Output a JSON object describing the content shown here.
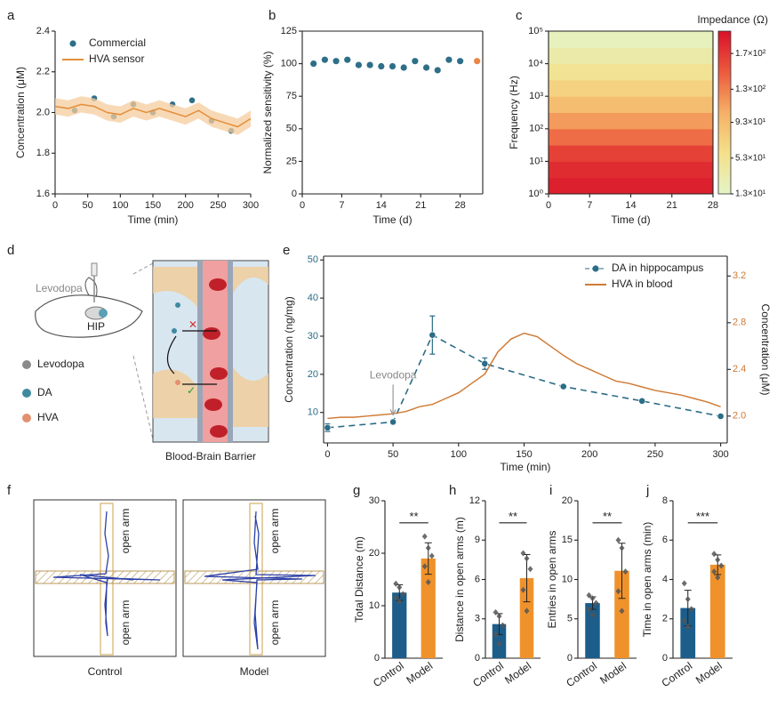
{
  "chart_data": [
    {
      "type": "line",
      "panel": "a",
      "xlabel": "Time (min)",
      "ylabel": "Concentration (μM)",
      "xlim": [
        0,
        300
      ],
      "xticks": [
        0,
        50,
        100,
        150,
        200,
        250,
        300
      ],
      "ylim": [
        1.6,
        2.4
      ],
      "yticks": [
        1.6,
        1.8,
        {
          "value": 2.0,
          "label": "2.0"
        },
        2.2,
        2.4
      ],
      "legend": "upper left",
      "series": [
        {
          "name": "Commercial",
          "mode": "markers",
          "color": "#2e6f88",
          "x": [
            30,
            60,
            90,
            120,
            150,
            180,
            210,
            240,
            270
          ],
          "values": [
            2.01,
            2.07,
            1.98,
            2.04,
            2.0,
            2.04,
            2.06,
            1.96,
            1.91
          ]
        },
        {
          "name": "HVA sensor",
          "mode": "line",
          "color": "#e38f3a",
          "band_color": "#f6cc9e",
          "x": [
            0,
            20,
            40,
            60,
            80,
            100,
            120,
            140,
            160,
            180,
            200,
            220,
            240,
            260,
            280,
            300
          ],
          "values": [
            2.03,
            2.02,
            2.04,
            2.03,
            2.0,
            1.99,
            2.02,
            2.0,
            2.02,
            2.0,
            1.98,
            2.01,
            1.97,
            1.95,
            1.93,
            1.97
          ],
          "errors": [
            0.04,
            0.04,
            0.04,
            0.04,
            0.04,
            0.04,
            0.04,
            0.04,
            0.04,
            0.04,
            0.04,
            0.04,
            0.04,
            0.04,
            0.04,
            0.04
          ]
        }
      ]
    },
    {
      "type": "scatter",
      "panel": "b",
      "xlabel": "Time (d)",
      "ylabel": "Normalized sensitivity (%)",
      "xlim": [
        0,
        32
      ],
      "xticks": [
        0,
        7,
        14,
        21,
        28
      ],
      "ylim": [
        0,
        125
      ],
      "yticks": [
        0,
        25,
        50,
        75,
        100,
        125
      ],
      "series": [
        {
          "color": "#2e6f88",
          "x": [
            2,
            4,
            6,
            8,
            10,
            12,
            14,
            16,
            18,
            20,
            22,
            24,
            26,
            28
          ],
          "values": [
            100,
            103,
            102,
            103,
            99,
            99,
            98,
            98,
            97,
            102,
            97,
            95,
            103,
            102
          ]
        },
        {
          "color": "#e8874a",
          "x": [
            31
          ],
          "values": [
            102
          ]
        }
      ]
    },
    {
      "type": "heatmap",
      "panel": "c",
      "xlabel": "Time (d)",
      "ylabel": "Frequency (Hz)",
      "clabel": "Impedance (Ω)",
      "xlim": [
        0,
        28
      ],
      "xticks": [
        0,
        7,
        14,
        21,
        28
      ],
      "log_y": true,
      "ylim": [
        1,
        100000
      ],
      "yticks": [
        {
          "value": 1,
          "label": "10⁰"
        },
        {
          "value": 10,
          "label": "10¹"
        },
        {
          "value": 100,
          "label": "10²"
        },
        {
          "value": 1000,
          "label": "10³"
        },
        {
          "value": 10000,
          "label": "10⁴"
        },
        {
          "value": 100000,
          "label": "10⁵"
        }
      ],
      "ybins": [
        1,
        3.16,
        10,
        31.6,
        100,
        316,
        1000,
        3160,
        10000,
        31600,
        100000
      ],
      "values": [
        185,
        178,
        165,
        140,
        115,
        92,
        72,
        52,
        36,
        20
      ],
      "clim": [
        13,
        195
      ],
      "colorscale": [
        "#e4f4c6",
        "#f4e08c",
        "#f5b066",
        "#ec5a3e",
        "#d8102a"
      ],
      "cticks": [
        {
          "value": 13,
          "label": "1.3×10¹"
        },
        {
          "value": 53,
          "label": "5.3×10¹"
        },
        {
          "value": 93,
          "label": "9.3×10¹"
        },
        {
          "value": 130,
          "label": "1.3×10²"
        },
        {
          "value": 170,
          "label": "1.7×10²"
        }
      ]
    },
    {
      "type": "line",
      "panel": "e",
      "xlabel": "Time (min)",
      "ylabel": "Concentration (ng/mg)",
      "y2label": "Concentration (μM)",
      "annotation": "Levodopa",
      "xlim": [
        -3,
        305
      ],
      "xticks": [
        0,
        50,
        100,
        150,
        200,
        250,
        300
      ],
      "ylim": [
        2,
        51
      ],
      "yticks": [
        10,
        20,
        30,
        40,
        50
      ],
      "y2lim": [
        1.77,
        3.37
      ],
      "y2ticks": [
        {
          "value": 2.0,
          "label": "2.0"
        },
        2.4,
        2.8,
        3.2
      ],
      "legend": "upper right",
      "series": [
        {
          "name": "DA in hippocampus",
          "mode": "markers",
          "dash": true,
          "color": "#2b6d86",
          "x": [
            0,
            50,
            80,
            120,
            180,
            240,
            300
          ],
          "values": [
            6,
            7.5,
            30.3,
            22.8,
            16.8,
            13,
            9
          ],
          "errors": [
            1,
            0.5,
            5,
            1.5,
            0,
            0,
            0
          ]
        },
        {
          "name": "HVA in blood",
          "mode": "line",
          "axis": "y2",
          "color": "#cf7a34",
          "x": [
            0,
            10,
            20,
            30,
            40,
            50,
            60,
            70,
            80,
            90,
            100,
            110,
            120,
            130,
            140,
            150,
            160,
            170,
            180,
            190,
            200,
            210,
            220,
            230,
            240,
            250,
            260,
            270,
            280,
            290,
            300
          ],
          "values": [
            1.98,
            1.99,
            1.99,
            2.0,
            2.01,
            2.02,
            2.04,
            2.08,
            2.1,
            2.15,
            2.2,
            2.28,
            2.36,
            2.55,
            2.66,
            2.71,
            2.68,
            2.6,
            2.52,
            2.45,
            2.4,
            2.35,
            2.3,
            2.28,
            2.25,
            2.22,
            2.2,
            2.18,
            2.15,
            2.12,
            2.08
          ]
        }
      ]
    },
    {
      "type": "bar",
      "panel": "g",
      "ylabel": "Total Distance (m)",
      "categories": [
        "Control",
        "Model"
      ],
      "colors": [
        "#1c5d8a",
        "#f0922b"
      ],
      "ylim": [
        0,
        30
      ],
      "yticks": [
        0,
        10,
        20,
        30
      ],
      "values": [
        12.5,
        19
      ],
      "errors": [
        1.5,
        3
      ],
      "points": [
        [
          14.2,
          13.5,
          12.2,
          11.5,
          10.8
        ],
        [
          23.2,
          21,
          19.5,
          17.5,
          14.5
        ]
      ],
      "significance": "**"
    },
    {
      "type": "bar",
      "panel": "h",
      "ylabel": "Distance in open arms (m)",
      "categories": [
        "Control",
        "Model"
      ],
      "colors": [
        "#1c5d8a",
        "#f0922b"
      ],
      "ylim": [
        0,
        12
      ],
      "yticks": [
        0,
        3,
        6,
        9,
        12
      ],
      "values": [
        2.6,
        6.1
      ],
      "errors": [
        0.8,
        1.8
      ],
      "points": [
        [
          3.5,
          3.2,
          2.5,
          1.8,
          1.1
        ],
        [
          8,
          7.6,
          6.8,
          5.2,
          3.6
        ]
      ],
      "significance": "**"
    },
    {
      "type": "bar",
      "panel": "i",
      "ylabel": "Entries in open arms",
      "categories": [
        "Control",
        "Model"
      ],
      "colors": [
        "#1c5d8a",
        "#f0922b"
      ],
      "ylim": [
        0,
        20
      ],
      "yticks": [
        0,
        5,
        10,
        15,
        20
      ],
      "values": [
        7,
        11.1
      ],
      "errors": [
        0.8,
        3.5
      ],
      "points": [
        [
          8,
          7.6,
          7,
          6.2,
          5.5
        ],
        [
          15,
          14,
          11,
          8.5,
          6
        ]
      ],
      "significance": "**"
    },
    {
      "type": "bar",
      "panel": "j",
      "ylabel": "Time in open arms (min)",
      "categories": [
        "Control",
        "Model"
      ],
      "colors": [
        "#1c5d8a",
        "#f0922b"
      ],
      "ylim": [
        0,
        8
      ],
      "yticks": [
        0,
        2,
        4,
        6,
        8
      ],
      "values": [
        2.55,
        4.75
      ],
      "errors": [
        0.9,
        0.5
      ],
      "points": [
        [
          3.8,
          3,
          2.5,
          1.9,
          1.6
        ],
        [
          5.3,
          5,
          4.7,
          4.4,
          4.1
        ]
      ],
      "significance": "***"
    }
  ],
  "diagrams": [
    {
      "panel": "d",
      "texts": [
        "Levodopa",
        "HIP",
        "Levodopa",
        "DA",
        "HVA",
        "Blood-Brain Barrier"
      ]
    },
    {
      "panel": "f",
      "texts": [
        "open arm",
        "open arm",
        "open arm",
        "open arm",
        "Control",
        "Model"
      ]
    }
  ]
}
